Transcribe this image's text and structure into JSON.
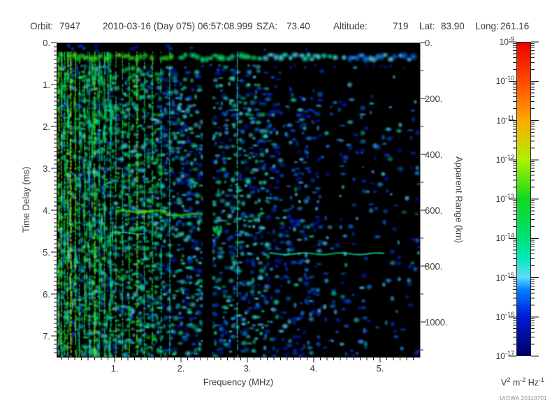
{
  "header": {
    "orbit_label": "Orbit:",
    "orbit_value": "7947",
    "datetime": "2010-03-16 (Day 075) 06:57:08.999",
    "sza_label": "SZA:",
    "sza_value": "73.40",
    "altitude_label": "Altitude:",
    "altitude_value": "719",
    "lat_label": "Lat:",
    "lat_value": "83.90",
    "long_label": "Long:",
    "long_value": "261.16"
  },
  "watermark": "UIOWA 20110701",
  "chart_data": {
    "type": "heatmap",
    "subtype": "radar-sounder-ionogram-spectrogram",
    "title": "",
    "x_axis": {
      "label": "Frequency (MHz)",
      "range": [
        0.14,
        5.6
      ],
      "major_ticks": [
        {
          "v": 1,
          "label": "1."
        },
        {
          "v": 2,
          "label": "2."
        },
        {
          "v": 3,
          "label": "3."
        },
        {
          "v": 4,
          "label": "4."
        },
        {
          "v": 5,
          "label": "5."
        }
      ],
      "minor_step": 0.1
    },
    "y_axis": {
      "label": "Time Delay (ms)",
      "range": [
        0,
        7.5
      ],
      "direction": "down",
      "major_ticks": [
        {
          "v": 0,
          "label": "0."
        },
        {
          "v": 1,
          "label": "1."
        },
        {
          "v": 2,
          "label": "2."
        },
        {
          "v": 3,
          "label": "3."
        },
        {
          "v": 4,
          "label": "4."
        },
        {
          "v": 5,
          "label": "5."
        },
        {
          "v": 6,
          "label": "6."
        },
        {
          "v": 7,
          "label": "7."
        }
      ],
      "minor_step": 0.1
    },
    "y2_axis": {
      "label": "Apparent Range (km)",
      "range": [
        0,
        1125
      ],
      "major_ticks": [
        {
          "v": 0,
          "label": "0."
        },
        {
          "v": 200,
          "label": "200."
        },
        {
          "v": 400,
          "label": "400."
        },
        {
          "v": 600,
          "label": "600."
        },
        {
          "v": 800,
          "label": "800."
        },
        {
          "v": 1000,
          "label": "1000."
        }
      ],
      "minor_step": 100
    },
    "colorbar": {
      "scale": "log",
      "range_low": "1e-17",
      "range_high": "1e-9",
      "exponents": [
        "-9",
        "-10",
        "-11",
        "-12",
        "-13",
        "-14",
        "-15",
        "-16",
        "-17"
      ],
      "unit_parts": [
        {
          "t": "V"
        },
        {
          "s": "2"
        },
        {
          "t": " m"
        },
        {
          "s": "-2"
        },
        {
          "t": " Hz"
        },
        {
          "s": "-1"
        }
      ],
      "gradient": [
        {
          "p": 0.0,
          "c": "#000066"
        },
        {
          "p": 0.125,
          "c": "#001ad9"
        },
        {
          "p": 0.21,
          "c": "#0080ff"
        },
        {
          "p": 0.25,
          "c": "#5cdcff"
        },
        {
          "p": 0.315,
          "c": "#00e8b8"
        },
        {
          "p": 0.375,
          "c": "#00e07a"
        },
        {
          "p": 0.5,
          "c": "#12d81c"
        },
        {
          "p": 0.625,
          "c": "#aef000"
        },
        {
          "p": 0.75,
          "c": "#ffaa00"
        },
        {
          "p": 0.875,
          "c": "#ff4a00"
        },
        {
          "p": 1.0,
          "c": "#ec0000"
        }
      ]
    },
    "features": {
      "first_return_band": {
        "t_ms": [
          0.2,
          0.55
        ],
        "f_mhz": [
          0.14,
          5.6
        ]
      },
      "plasma_harmonic_lines": [
        {
          "f": 0.16,
          "s": 0.56,
          "w": 2.4
        },
        {
          "f": 0.2,
          "s": 0.52,
          "w": 2.2
        },
        {
          "f": 0.25,
          "s": 0.48,
          "w": 2.2
        },
        {
          "f": 0.29,
          "s": 0.52,
          "w": 2.2
        },
        {
          "f": 0.34,
          "s": 0.63,
          "w": 2.6
        },
        {
          "f": 0.41,
          "s": 0.53,
          "w": 2.2
        },
        {
          "f": 0.47,
          "s": 0.46,
          "w": 2.0
        },
        {
          "f": 0.55,
          "s": 0.5,
          "w": 2.2
        },
        {
          "f": 0.62,
          "s": 0.44,
          "w": 2.0
        },
        {
          "f": 0.7,
          "s": 0.55,
          "w": 2.6
        },
        {
          "f": 0.77,
          "s": 0.42,
          "w": 2.0
        },
        {
          "f": 0.85,
          "s": 0.48,
          "w": 2.2
        },
        {
          "f": 0.94,
          "s": 0.4,
          "w": 2.0
        },
        {
          "f": 1.02,
          "s": 0.5,
          "w": 2.2
        },
        {
          "f": 1.12,
          "s": 0.42,
          "w": 2.0
        },
        {
          "f": 1.22,
          "s": 0.47,
          "w": 2.2
        },
        {
          "f": 1.34,
          "s": 0.53,
          "w": 3.2
        },
        {
          "f": 1.45,
          "s": 0.4,
          "w": 2.0
        },
        {
          "f": 1.57,
          "s": 0.45,
          "w": 2.4
        },
        {
          "f": 1.7,
          "s": 0.36,
          "w": 2.0
        },
        {
          "f": 1.83,
          "s": 0.34,
          "w": 2.0
        },
        {
          "f": 2.85,
          "s": 0.28,
          "w": 2.0
        }
      ],
      "echo_traces": [
        {
          "name": "ionosphere-echo",
          "t_ms": 4.08,
          "f_mhz": [
            1.05,
            2.32
          ],
          "v": 0.5,
          "half_thickness": 3.5
        },
        {
          "name": "ionosphere-echo-faint",
          "t_ms": 4.55,
          "f_mhz": [
            0.96,
            1.45
          ],
          "v": 0.28,
          "half_thickness": 2.0
        },
        {
          "name": "surface-echo",
          "t_ms": 5.04,
          "f_mhz": [
            3.35,
            5.05
          ],
          "v": 0.28,
          "half_thickness": 2.5
        }
      ],
      "attenuation_gap": {
        "f_mhz": [
          2.33,
          2.47
        ]
      },
      "post_gap_blob": {
        "f_mhz": [
          2.5,
          2.64
        ],
        "t_ms": [
          4.2,
          4.6
        ],
        "v": 0.38
      },
      "noise_speckle": {
        "seed": 20110701,
        "dense_below_mhz": 3.3,
        "sparse_above_mhz": 4.5
      }
    }
  }
}
